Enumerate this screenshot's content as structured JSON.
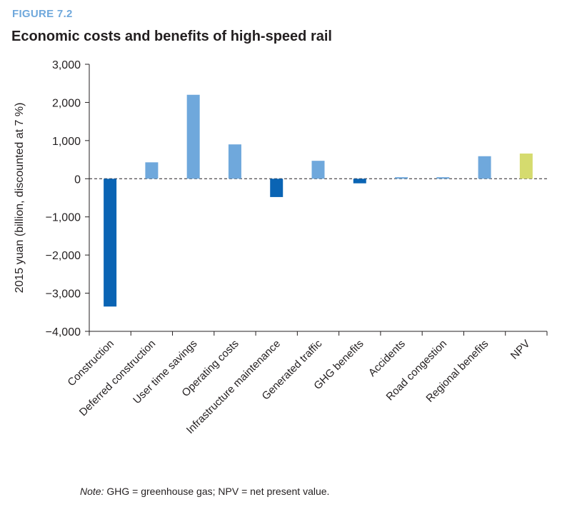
{
  "figure": {
    "label": "FIGURE 7.2",
    "title": "Economic costs and benefits of high-speed rail"
  },
  "note": {
    "prefix": "Note:",
    "text": " GHG = greenhouse gas; NPV = net present value."
  },
  "colors": {
    "cost": "#0a64b4",
    "benefit": "#6fa8dc",
    "npv": "#d5db6e",
    "axis": "#231f20"
  },
  "chart_data": {
    "type": "bar",
    "title": "Economic costs and benefits of high-speed rail",
    "xlabel": "",
    "ylabel": "2015 yuan (billion, discounted at 7 %)",
    "ylim": [
      -4000,
      3000
    ],
    "yticks": [
      3000,
      2000,
      1000,
      0,
      -1000,
      -2000,
      -3000,
      -4000
    ],
    "ytick_labels": [
      "3,000",
      "2,000",
      "1,000",
      "0",
      "−1,000",
      "−2,000",
      "−3,000",
      "−4,000"
    ],
    "categories": [
      "Construction",
      "Deferred construction",
      "User time savings",
      "Operating costs",
      "Infrastructure maintenance",
      "Generated traffic",
      "GHG benefits",
      "Accidents",
      "Road congestion",
      "Regional benefits",
      "NPV"
    ],
    "values": [
      -3350,
      430,
      2200,
      900,
      -480,
      470,
      -120,
      40,
      40,
      590,
      660
    ],
    "bar_kind": [
      "cost",
      "benefit",
      "benefit",
      "benefit",
      "cost",
      "benefit",
      "cost",
      "benefit",
      "benefit",
      "benefit",
      "npv"
    ],
    "zero_line": "dashed",
    "grid": false
  }
}
